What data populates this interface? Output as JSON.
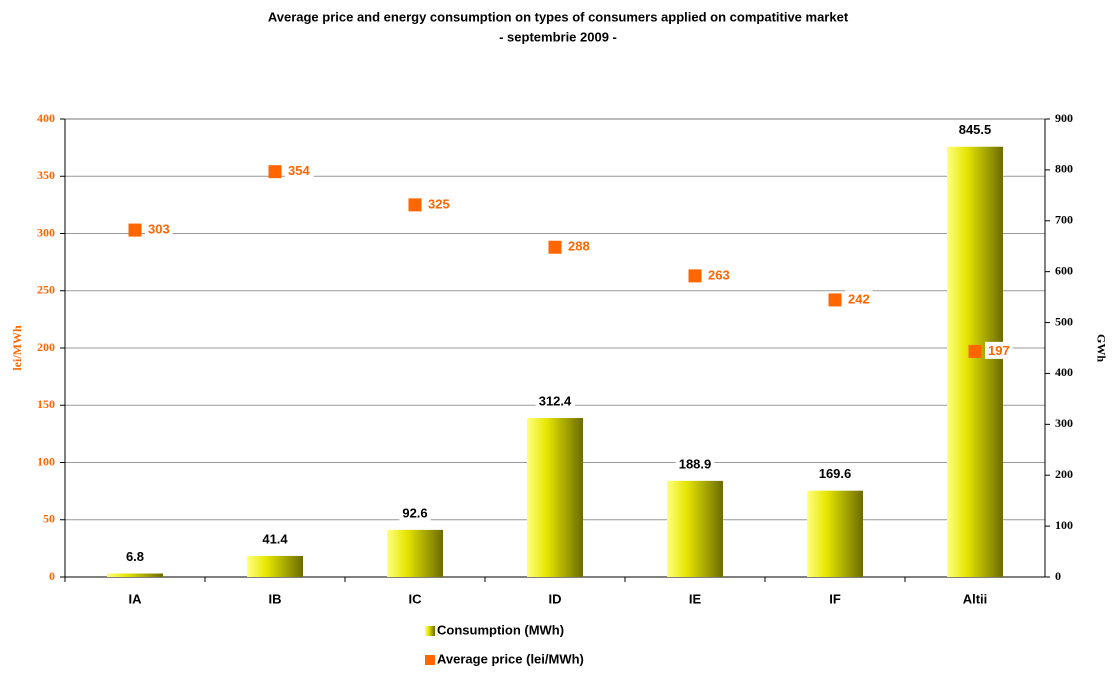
{
  "chart_data": {
    "type": "combo",
    "title": "Average price and energy consumption on types of consumers applied on compatitive market",
    "subtitle": "- septembrie 2009 -",
    "categories": [
      "IA",
      "IB",
      "IC",
      "ID",
      "IE",
      "IF",
      "Altii"
    ],
    "series": [
      {
        "name": "Consumption (MWh)",
        "type": "bar",
        "axis": "y2",
        "color": "#d4d400",
        "values": [
          6.8,
          41.4,
          92.6,
          312.4,
          188.9,
          169.6,
          845.5
        ]
      },
      {
        "name": "Average price (lei/MWh)",
        "type": "scatter",
        "axis": "y",
        "color": "#ff6600",
        "values": [
          303,
          354,
          325,
          288,
          263,
          242,
          197
        ]
      }
    ],
    "ylabel": "lei/MWh",
    "y2label": "GWh",
    "ylim": [
      0,
      400
    ],
    "yticks": [
      0,
      50,
      100,
      150,
      200,
      250,
      300,
      350,
      400
    ],
    "y2lim": [
      0,
      900
    ],
    "y2ticks": [
      0,
      100,
      200,
      300,
      400,
      500,
      600,
      700,
      800,
      900
    ],
    "grid": true,
    "legend": "bottom"
  }
}
